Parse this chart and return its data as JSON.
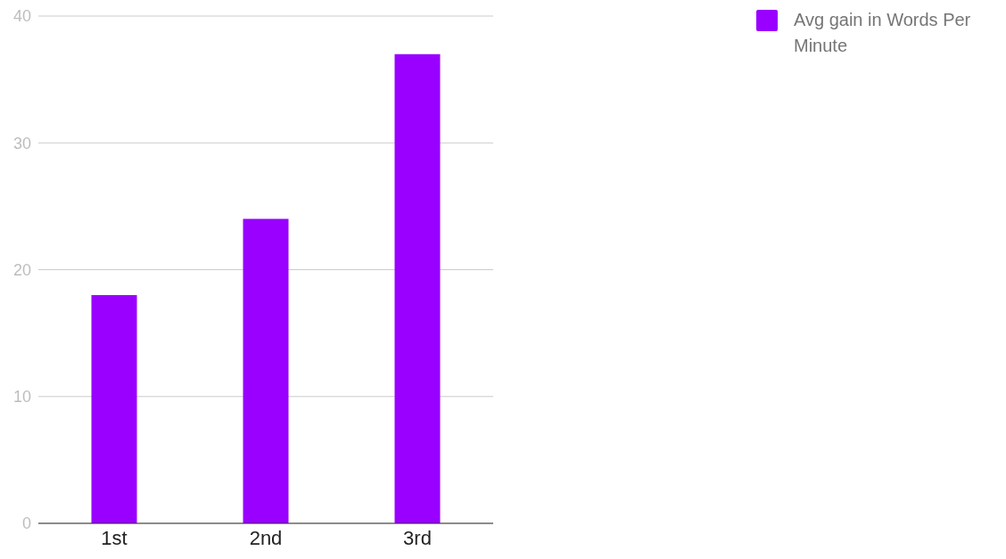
{
  "chart_data": {
    "type": "bar",
    "categories": [
      "1st",
      "2nd",
      "3rd"
    ],
    "series": [
      {
        "name": "Avg gain in Words Per Minute",
        "color": "#9900ff",
        "values": [
          18,
          24,
          37
        ]
      }
    ],
    "ylim": [
      0,
      40
    ],
    "yticks": [
      0,
      10,
      20,
      30,
      40
    ],
    "grid": "y",
    "legend": "top right"
  }
}
